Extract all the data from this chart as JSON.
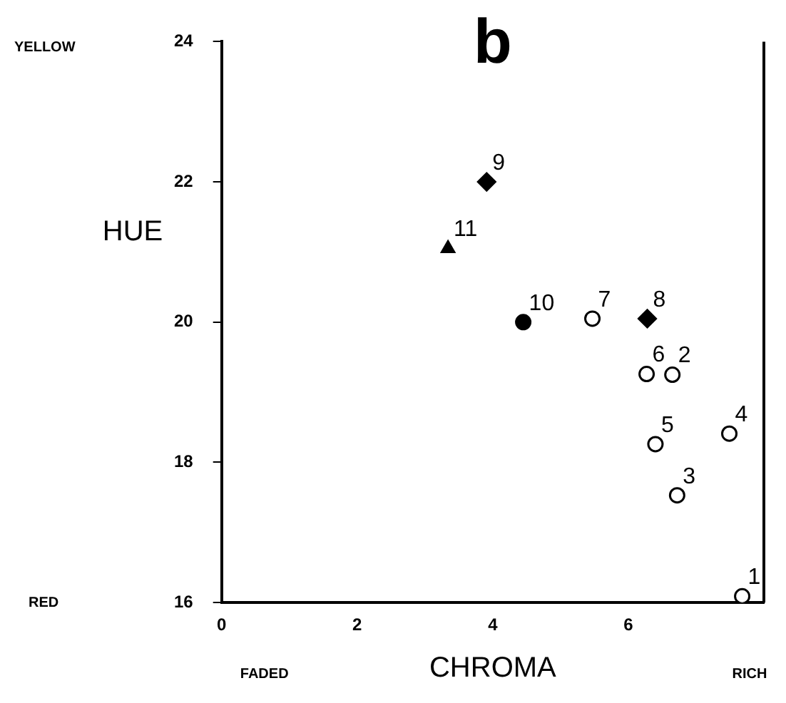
{
  "chart_data": {
    "type": "scatter",
    "title": "b",
    "xlabel": "CHROMA",
    "ylabel": "HUE",
    "series": [
      {
        "color": "#000000",
        "marker": "circle",
        "x": [
          7.68,
          6.65,
          6.72,
          7.49,
          6.4,
          6.27,
          5.47
        ],
        "values": [
          16.09,
          19.25,
          17.53,
          18.41,
          18.26,
          19.26,
          20.05
        ]
      },
      {
        "color": "#000000",
        "marker": "diamond",
        "x": [
          6.28,
          3.91
        ],
        "values": [
          20.05,
          22.0
        ]
      },
      {
        "color": "#000000",
        "marker": "circle",
        "x": [
          4.45
        ],
        "values": [
          20.0
        ]
      },
      {
        "color": "#000000",
        "marker": "triangle",
        "x": [
          3.34
        ],
        "values": [
          21.05
        ]
      }
    ],
    "annotations": [
      {
        "text": "1",
        "x": 7.68,
        "y": 16.09
      },
      {
        "text": "2",
        "x": 6.65,
        "y": 19.25
      },
      {
        "text": "3",
        "x": 6.72,
        "y": 17.53
      },
      {
        "text": "4",
        "x": 7.49,
        "y": 18.41
      },
      {
        "text": "5",
        "x": 6.4,
        "y": 18.26
      },
      {
        "text": "6",
        "x": 6.27,
        "y": 19.26
      },
      {
        "text": "7",
        "x": 5.47,
        "y": 20.05
      },
      {
        "text": "8",
        "x": 6.28,
        "y": 20.05
      },
      {
        "text": "9",
        "x": 3.91,
        "y": 22.0
      },
      {
        "text": "10",
        "x": 4.45,
        "y": 20.0
      },
      {
        "text": "11",
        "x": 3.34,
        "y": 21.05
      },
      "YELLOW",
      "RED",
      "FADED",
      "RICH"
    ],
    "xlim": [
      0,
      8
    ],
    "xticks": [
      0,
      2,
      4,
      6
    ],
    "ylim": [
      16,
      24
    ],
    "yticks": [
      16,
      18,
      20,
      22,
      24
    ],
    "grid": false,
    "legend": false
  }
}
